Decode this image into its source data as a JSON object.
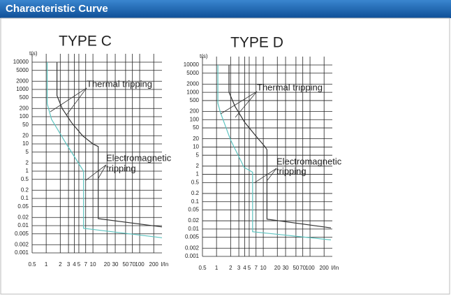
{
  "header": {
    "title": "Characteristic Curve"
  },
  "chart_data": [
    {
      "type": "line",
      "title": "TYPE C",
      "x_label": "I/In",
      "y_label": "t(s)",
      "log_x": true,
      "log_y": true,
      "grid": true,
      "xlim": [
        0.5,
        300
      ],
      "ylim": [
        0.001,
        10000
      ],
      "xticks": [
        0.5,
        1,
        2,
        3,
        4,
        5,
        7,
        10,
        20,
        30,
        50,
        70,
        100,
        200
      ],
      "yticks": [
        10000,
        5000,
        2000,
        1000,
        500,
        200,
        100,
        50,
        20,
        10,
        5,
        2,
        1,
        0.5,
        0.2,
        0.1,
        0.05,
        0.02,
        0.01,
        0.005,
        0.002,
        0.001
      ],
      "series": [
        {
          "color": "#5cc4c0",
          "x": [
            1.05,
            1.05,
            1.3,
            2.7,
            4.5,
            6.3,
            6.3,
            300
          ],
          "values": [
            10000,
            300,
            80,
            10,
            2.5,
            1,
            0.008,
            0.0036
          ]
        },
        {
          "color": "#333333",
          "x": [
            1.7,
            1.7,
            2.2,
            3.5,
            6,
            10,
            13,
            13,
            300
          ],
          "values": [
            10000,
            600,
            200,
            60,
            20,
            10,
            8,
            0.018,
            0.009
          ]
        }
      ],
      "annotations": [
        "Thermal tripping",
        "Electromagnetic",
        "tripping"
      ]
    },
    {
      "type": "line",
      "title": "TYPE D",
      "x_label": "I/In",
      "y_label": "t(s)",
      "log_x": true,
      "log_y": true,
      "grid": true,
      "xlim": [
        0.5,
        300
      ],
      "ylim": [
        0.001,
        10000
      ],
      "xticks": [
        0.5,
        1,
        2,
        3,
        4,
        5,
        7,
        10,
        20,
        30,
        50,
        70,
        100,
        200
      ],
      "yticks": [
        10000,
        5000,
        2000,
        1000,
        500,
        200,
        100,
        50,
        20,
        10,
        5,
        2,
        1,
        0.5,
        0.2,
        0.1,
        0.05,
        0.02,
        0.01,
        0.005,
        0.002,
        0.001
      ],
      "series": [
        {
          "color": "#5cc4c0",
          "x": [
            1.07,
            1.07,
            1.2,
            2,
            3.9,
            5.9,
            5.9,
            280
          ],
          "values": [
            10000,
            400,
            190,
            18,
            1.8,
            1.2,
            0.008,
            0.004
          ]
        },
        {
          "color": "#333333",
          "x": [
            1.85,
            1.85,
            2.5,
            4,
            7,
            11,
            12,
            12,
            280
          ],
          "values": [
            10000,
            1000,
            300,
            80,
            25,
            10,
            8,
            0.023,
            0.011
          ]
        }
      ],
      "annotations": [
        "Thermal tripping",
        "Electromagnetic",
        "tripping"
      ]
    }
  ]
}
